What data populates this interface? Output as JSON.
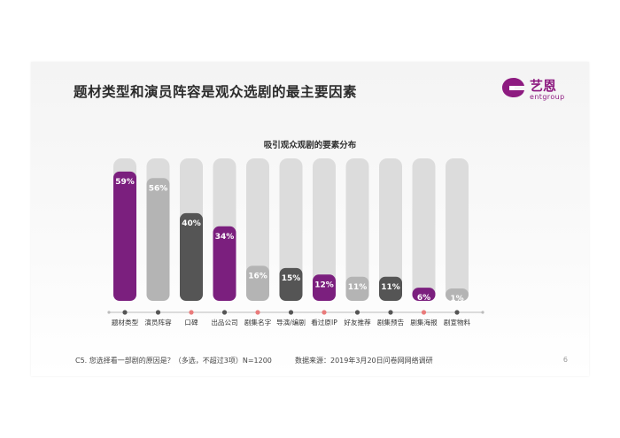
{
  "slide": {
    "title": "题材类型和演员阵容是观众选剧的最主要因素",
    "logo_cn": "艺恩",
    "logo_en": "entgroup",
    "footer_question": "C5. 您选择看一部剧的原因是？（多选，不超过3项）N=1200",
    "footer_source": "数据来源：2019年3月20日问卷网网络调研",
    "page_number": "6"
  },
  "colors": {
    "purple": "#7b1f7e",
    "light_gray": "#b4b4b4",
    "dark_gray": "#555555",
    "track": "#dcdcdc",
    "dot_pink": "#e97b7b"
  },
  "chart_data": {
    "type": "bar",
    "title": "吸引观众观剧的要素分布",
    "categories": [
      "题材类型",
      "演员阵容",
      "口碑",
      "出品公司",
      "剧集名字",
      "导演/编剧",
      "看过原IP",
      "好友推荐",
      "剧集预告",
      "剧集海报",
      "剧宣物料"
    ],
    "values": [
      59,
      56,
      40,
      34,
      16,
      15,
      12,
      11,
      11,
      6,
      1
    ],
    "value_labels": [
      "59%",
      "56%",
      "40%",
      "34%",
      "16%",
      "15%",
      "12%",
      "11%",
      "11%",
      "6%",
      "1%"
    ],
    "bar_colors": [
      "#7b1f7e",
      "#b4b4b4",
      "#555555",
      "#7b1f7e",
      "#b4b4b4",
      "#555555",
      "#7b1f7e",
      "#b4b4b4",
      "#555555",
      "#7b1f7e",
      "#b4b4b4"
    ],
    "dot_colors": [
      "#555555",
      "#555555",
      "#e97b7b",
      "#555555",
      "#e97b7b",
      "#555555",
      "#e97b7b",
      "#555555",
      "#555555",
      "#e97b7b",
      "#555555"
    ],
    "ylim": [
      0,
      65
    ]
  }
}
